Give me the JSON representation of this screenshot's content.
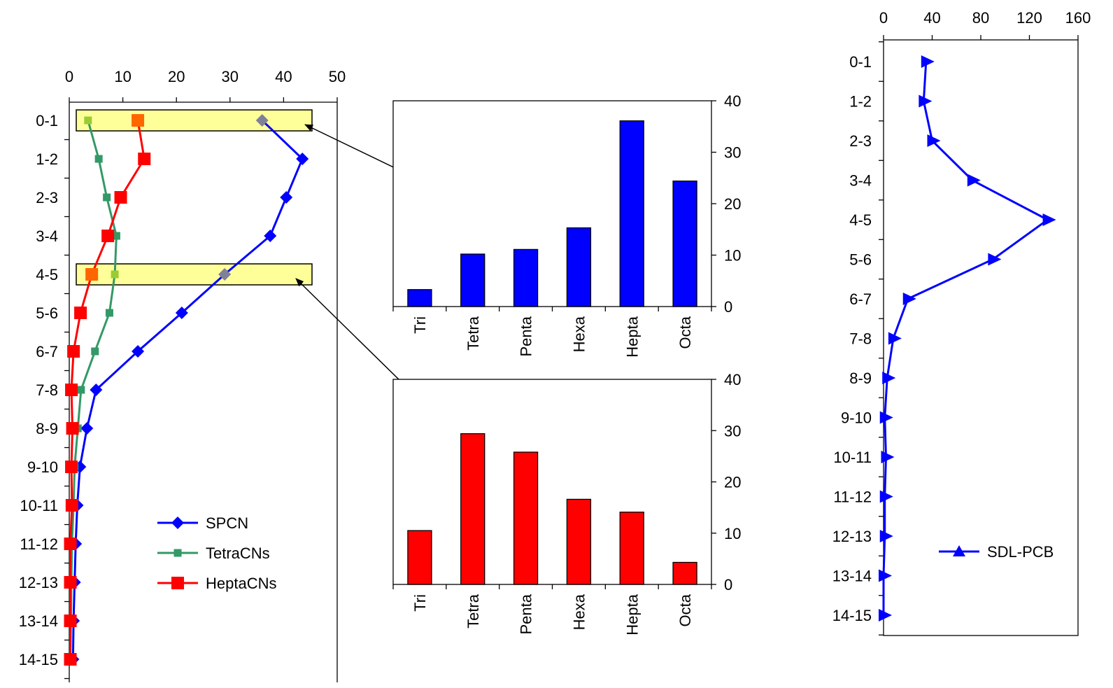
{
  "chart_data": [
    {
      "type": "line",
      "orientation": "depth-profile",
      "categories": [
        "0-1",
        "1-2",
        "2-3",
        "3-4",
        "4-5",
        "5-6",
        "6-7",
        "7-8",
        "8-9",
        "9-10",
        "10-11",
        "11-12",
        "12-13",
        "13-14",
        "14-15"
      ],
      "xlim": [
        0,
        50
      ],
      "xticks": [
        "0",
        "10",
        "20",
        "30",
        "40",
        "50"
      ],
      "legend_position": "bottom-center",
      "series": [
        {
          "name": "SPCN",
          "color": "#0000ff",
          "marker": "diamond",
          "values": [
            36,
            43.5,
            40.5,
            37.5,
            29,
            21,
            12.8,
            5,
            3.3,
            2,
            1.5,
            1.2,
            1,
            0.8,
            0.7
          ]
        },
        {
          "name": "TetraCNs",
          "color": "#339966",
          "marker": "small-square",
          "values": [
            3.5,
            5.5,
            7,
            8.8,
            8.5,
            7.5,
            4.8,
            2.2,
            1.6,
            1,
            0.8,
            0.5,
            0.4,
            0.3,
            0.2
          ]
        },
        {
          "name": "HeptaCNs",
          "color": "#ff0000",
          "marker": "square",
          "values": [
            12.8,
            14,
            9.6,
            7.2,
            4.2,
            2.1,
            0.8,
            0.4,
            0.6,
            0.4,
            0.5,
            0.2,
            0.2,
            0.2,
            0.2
          ]
        }
      ],
      "highlights": [
        "0-1",
        "4-5"
      ],
      "highlight_color": "#ffff99"
    },
    {
      "type": "bar",
      "categories": [
        "Tri",
        "Tetra",
        "Penta",
        "Hexa",
        "Hepta",
        "Octa"
      ],
      "values": [
        3.3,
        10.2,
        11.1,
        15.3,
        36.1,
        24.4
      ],
      "color": "#0000ff",
      "ylim": [
        0,
        40
      ],
      "yticks": [
        "0",
        "10",
        "20",
        "30",
        "40"
      ]
    },
    {
      "type": "bar",
      "categories": [
        "Tri",
        "Tetra",
        "Penta",
        "Hexa",
        "Hepta",
        "Octa"
      ],
      "values": [
        10.5,
        29.4,
        25.8,
        16.6,
        14.1,
        4.3
      ],
      "color": "#ff0000",
      "ylim": [
        0,
        40
      ],
      "yticks": [
        "0",
        "10",
        "20",
        "30",
        "40"
      ]
    },
    {
      "type": "line",
      "orientation": "depth-profile",
      "categories": [
        "0-1",
        "1-2",
        "2-3",
        "3-4",
        "4-5",
        "5-6",
        "6-7",
        "7-8",
        "8-9",
        "9-10",
        "10-11",
        "11-12",
        "12-13",
        "13-14",
        "14-15"
      ],
      "xlim": [
        0,
        160
      ],
      "xticks": [
        "0",
        "40",
        "80",
        "120",
        "160"
      ],
      "legend_position": "bottom-right",
      "series": [
        {
          "name": "SDL-PCB",
          "color": "#0000ff",
          "marker": "triangle",
          "values": [
            35,
            33,
            40,
            73,
            135,
            90,
            20,
            8,
            3,
            1,
            2,
            1,
            1,
            0,
            0
          ]
        }
      ]
    }
  ]
}
